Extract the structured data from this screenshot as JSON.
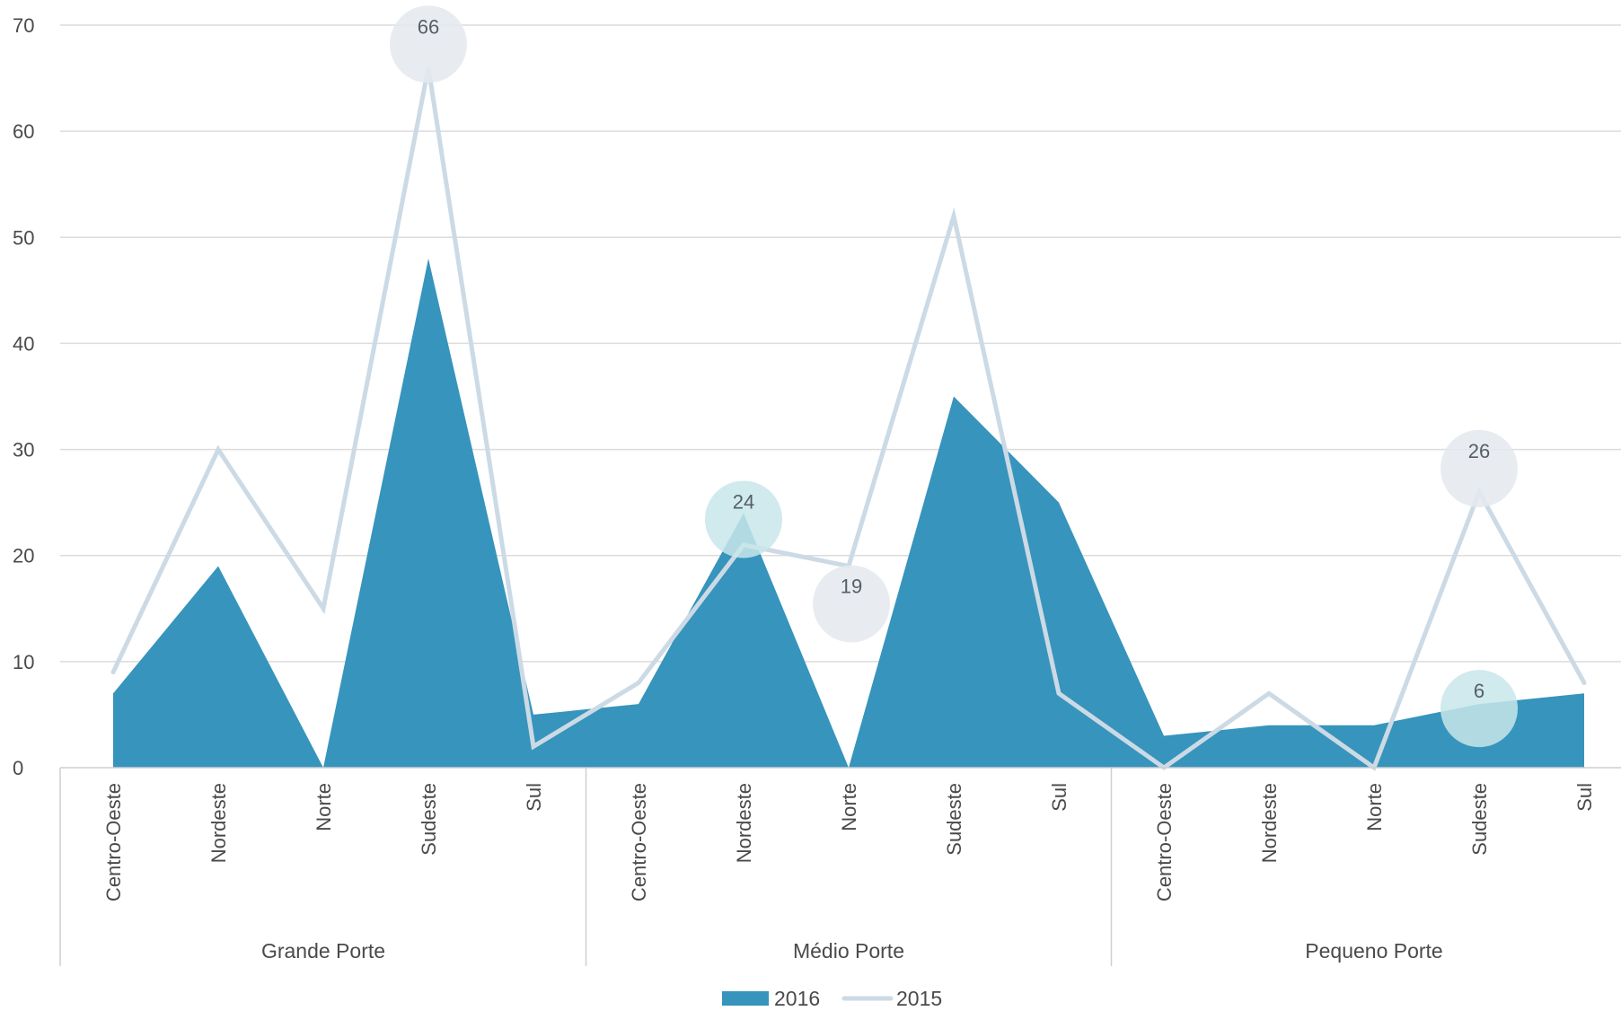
{
  "chart_data": {
    "type": "area",
    "groups": [
      {
        "label": "Grande Porte",
        "categories": [
          "Centro-Oeste",
          "Nordeste",
          "Norte",
          "Sudeste",
          "Sul"
        ]
      },
      {
        "label": "Médio Porte",
        "categories": [
          "Centro-Oeste",
          "Nordeste",
          "Norte",
          "Sudeste",
          "Sul"
        ]
      },
      {
        "label": "Pequeno Porte",
        "categories": [
          "Centro-Oeste",
          "Nordeste",
          "Norte",
          "Sudeste",
          "Sul"
        ]
      }
    ],
    "series": [
      {
        "name": "2016",
        "kind": "area",
        "color": "#3794bc",
        "values": [
          7,
          19,
          0,
          48,
          5,
          6,
          24,
          0,
          35,
          25,
          3,
          4,
          4,
          6,
          7
        ]
      },
      {
        "name": "2015",
        "kind": "line",
        "color": "#ccdae5",
        "values": [
          9,
          30,
          15,
          66,
          2,
          8,
          21,
          19,
          52,
          7,
          0,
          7,
          0,
          26,
          8
        ]
      }
    ],
    "ylim": [
      0,
      70
    ],
    "yticks": [
      0,
      10,
      20,
      30,
      40,
      50,
      60,
      70
    ],
    "grid": true,
    "legend_position": "bottom-center",
    "annotations": [
      {
        "series": "2015",
        "index": 3,
        "text": "66",
        "color": "#e4e9ee"
      },
      {
        "series": "2016",
        "index": 6,
        "text": "24",
        "color": "#c8e6ea"
      },
      {
        "series": "2015",
        "index": 7,
        "text": "19",
        "color": "#e4e9ee"
      },
      {
        "series": "2015",
        "index": 13,
        "text": "26",
        "color": "#e4e9ee"
      },
      {
        "series": "2016",
        "index": 13,
        "text": "6",
        "color": "#c8e6ea"
      }
    ]
  }
}
